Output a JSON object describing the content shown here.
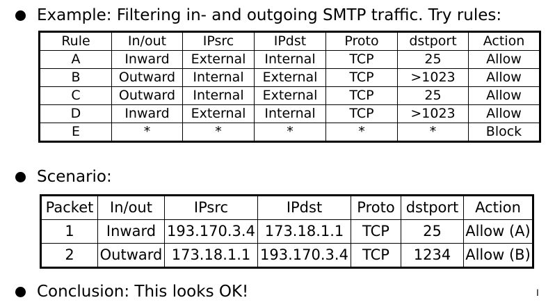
{
  "bullets": {
    "example": "Example: Filtering in- and outgoing SMTP traffic.  Try rules:",
    "scenario": "Scenario:",
    "conclusion": "Conclusion: This looks OK!"
  },
  "rules_table": {
    "headers": [
      "Rule",
      "In/out",
      "IPsrc",
      "IPdst",
      "Proto",
      "dstport",
      "Action"
    ],
    "rows": [
      [
        "A",
        "Inward",
        "External",
        "Internal",
        "TCP",
        "25",
        "Allow"
      ],
      [
        "B",
        "Outward",
        "Internal",
        "External",
        "TCP",
        ">1023",
        "Allow"
      ],
      [
        "C",
        "Outward",
        "Internal",
        "External",
        "TCP",
        "25",
        "Allow"
      ],
      [
        "D",
        "Inward",
        "External",
        "Internal",
        "TCP",
        ">1023",
        "Allow"
      ],
      [
        "E",
        "*",
        "*",
        "*",
        "*",
        "*",
        "Block"
      ]
    ]
  },
  "scenario_table": {
    "headers": [
      "Packet",
      "In/out",
      "IPsrc",
      "IPdst",
      "Proto",
      "dstport",
      "Action"
    ],
    "rows": [
      [
        "1",
        "Inward",
        "193.170.3.4",
        "173.18.1.1",
        "TCP",
        "25",
        "Allow (A)"
      ],
      [
        "2",
        "Outward",
        "173.18.1.1",
        "193.170.3.4",
        "TCP",
        "1234",
        "Allow (B)"
      ]
    ]
  },
  "cursor_icon": "text-cursor-icon"
}
